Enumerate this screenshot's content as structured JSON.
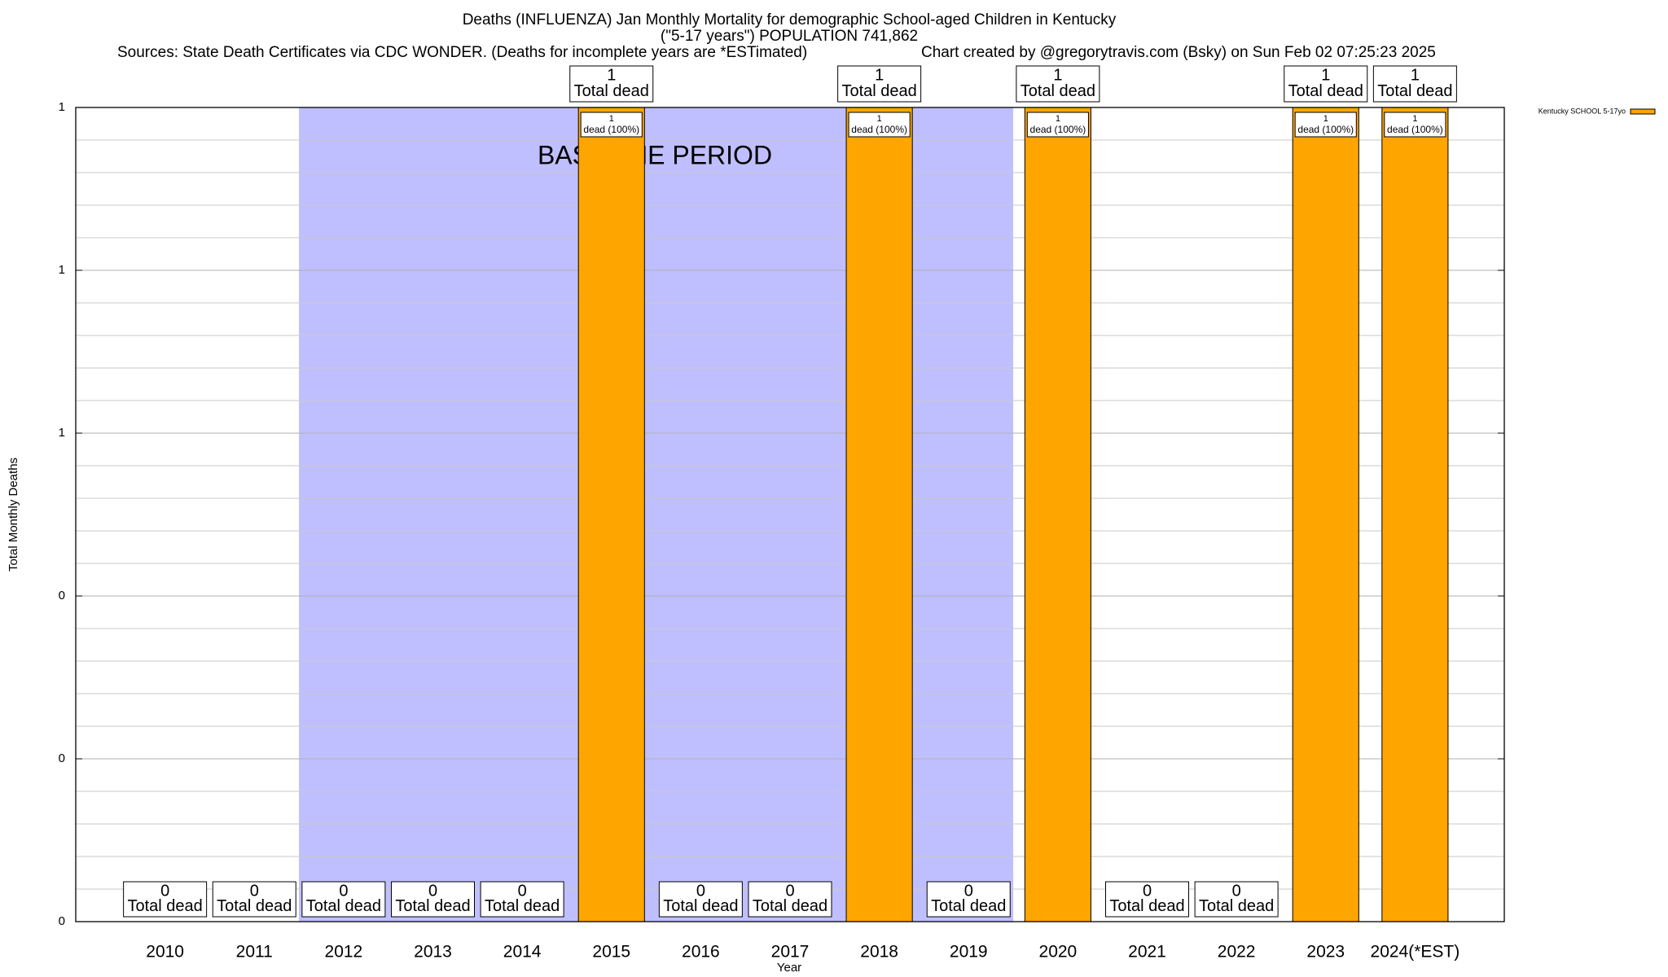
{
  "chart_data": {
    "type": "bar",
    "title": "Deaths (INFLUENZA) Jan Monthly Mortality for demographic School-aged Children in Kentucky",
    "subtitle": "(\"5-17 years\") POPULATION 741,862",
    "sources": "Sources: State Death Certificates via CDC WONDER. (Deaths for incomplete years are *ESTimated)",
    "credit": "Chart created by @gregorytravis.com (Bsky) on Sun Feb 02 07:25:23 2025",
    "x_label": "Year",
    "y_label": "Total Monthly Deaths",
    "categories": [
      "2010",
      "2011",
      "2012",
      "2013",
      "2014",
      "2015",
      "2016",
      "2017",
      "2018",
      "2019",
      "2020",
      "2021",
      "2022",
      "2023",
      "2024(*EST)"
    ],
    "series": [
      {
        "name": "Kentucky SCHOOL 5-17yo",
        "color": "#ffa500",
        "values": [
          0,
          0,
          0,
          0,
          0,
          1,
          0,
          0,
          1,
          0,
          1,
          0,
          0,
          1,
          1
        ]
      }
    ],
    "total_label": "Total dead",
    "inner_label": "dead (100%)",
    "baseline": {
      "label": "BASELINE PERIOD",
      "from": "2012",
      "to": "2019",
      "color": "#bfbfff"
    },
    "ylim": [
      0,
      1
    ],
    "yticks": [
      0,
      {
        "value": 0.2,
        "label": "0"
      },
      {
        "value": 0.4,
        "label": "0"
      },
      {
        "value": 0.6,
        "label": "1"
      },
      {
        "value": 0.8,
        "label": "1"
      },
      1
    ],
    "minor_yticks": [
      0.04,
      0.08,
      0.12,
      0.16,
      0.24,
      0.28,
      0.32,
      0.36,
      0.44,
      0.48,
      0.52,
      0.56,
      0.64,
      0.68,
      0.72,
      0.76,
      0.84,
      0.88,
      0.92,
      0.96
    ],
    "grid": true,
    "legend": "top-right"
  }
}
